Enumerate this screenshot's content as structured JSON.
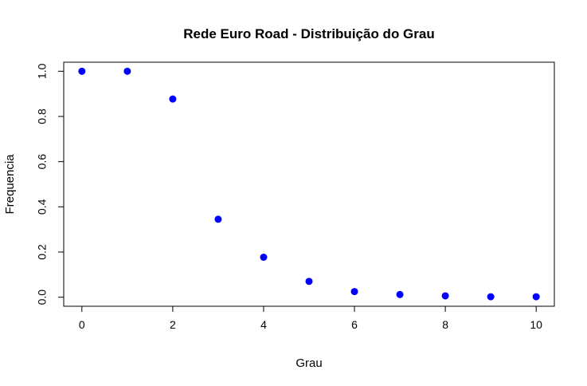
{
  "chart_data": {
    "type": "scatter",
    "title": "Rede Euro Road - Distribuição do Grau",
    "xlabel": "Grau",
    "ylabel": "Frequencia",
    "xlim": [
      -0.4,
      10.4
    ],
    "ylim": [
      -0.04,
      1.04
    ],
    "x_ticks": [
      0,
      2,
      4,
      6,
      8,
      10
    ],
    "x_tick_labels": [
      "0",
      "2",
      "4",
      "6",
      "8",
      "10"
    ],
    "y_ticks": [
      0.0,
      0.2,
      0.4,
      0.6,
      0.8,
      1.0
    ],
    "y_tick_labels": [
      "0.0",
      "0.2",
      "0.4",
      "0.6",
      "0.8",
      "1.0"
    ],
    "grid": false,
    "series": [
      {
        "color": "#0000ff",
        "x": [
          0,
          1,
          2,
          3,
          4,
          5,
          6,
          7,
          8,
          9,
          10
        ],
        "y": [
          1.0,
          1.0,
          0.877,
          0.345,
          0.177,
          0.07,
          0.025,
          0.012,
          0.006,
          0.002,
          0.002
        ]
      }
    ]
  }
}
